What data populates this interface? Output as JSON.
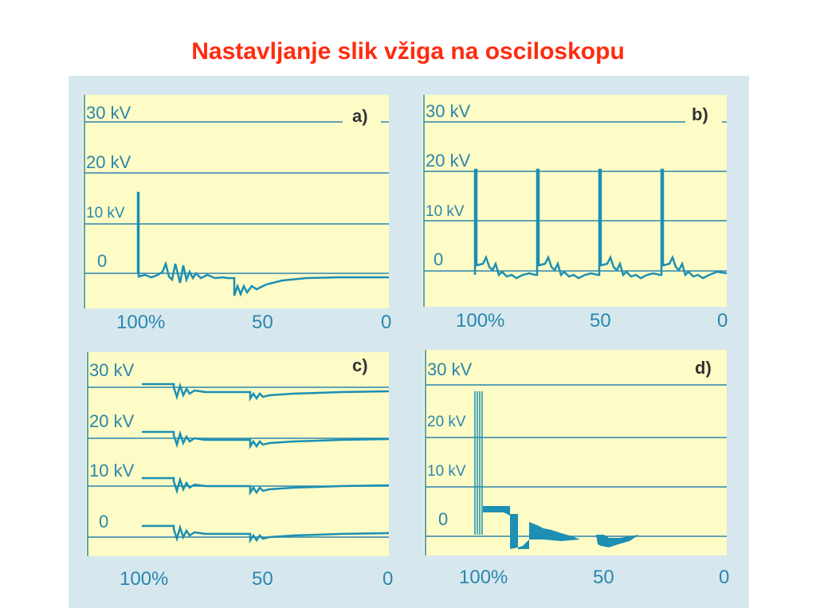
{
  "title": "Nastavljanje slik vžiga na osciloskopu",
  "colors": {
    "title": "#ff2b0f",
    "trace": "#1c8fb3",
    "panel": "#fdfbc6",
    "background": "#d6e8ee",
    "text": "#2b86ad"
  },
  "panels": [
    {
      "tag": "a)",
      "levels": [
        "30 kV",
        "20 kV",
        "10 kV",
        "0"
      ],
      "x_ticks": [
        "100%",
        "50",
        "0"
      ]
    },
    {
      "tag": "b)",
      "levels": [
        "30 kV",
        "20 kV",
        "10 kV",
        "0"
      ],
      "x_ticks": [
        "100%",
        "50",
        "0"
      ]
    },
    {
      "tag": "c)",
      "levels": [
        "30 kV",
        "20 kV",
        "10 kV",
        "0"
      ],
      "x_ticks": [
        "100%",
        "50",
        "0"
      ]
    },
    {
      "tag": "d)",
      "levels": [
        "30 kV",
        "20 kV",
        "10 kV",
        "0"
      ],
      "x_ticks": [
        "100%",
        "50",
        "0"
      ]
    }
  ]
}
